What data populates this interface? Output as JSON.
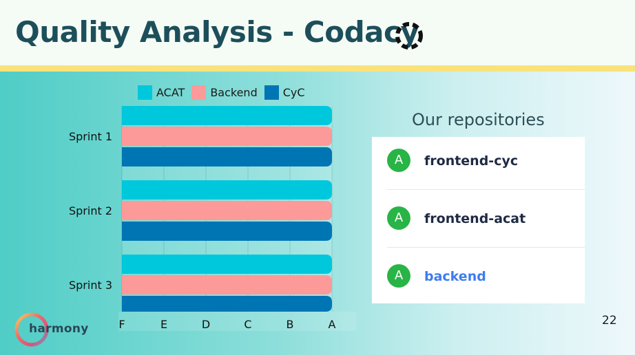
{
  "slide": {
    "title": "Quality Analysis - Codacy",
    "page_number": "22",
    "brand_name": "harmony",
    "colors": {
      "header_bg": "#f5fcf5",
      "header_line": "#fae27a",
      "title": "#1d4f5b"
    }
  },
  "chart_data": {
    "type": "bar",
    "orientation": "horizontal",
    "categories": [
      "Sprint 1",
      "Sprint 2",
      "Sprint 3"
    ],
    "x_ticks": [
      "F",
      "E",
      "D",
      "C",
      "B",
      "A"
    ],
    "series": [
      {
        "name": "ACAT",
        "color": "#00c8dc",
        "values": [
          "A",
          "A",
          "A"
        ]
      },
      {
        "name": "Backend",
        "color": "#fb9a99",
        "values": [
          "A",
          "A",
          "A"
        ]
      },
      {
        "name": "CyC",
        "color": "#0075b4",
        "values": [
          "A",
          "A",
          "A"
        ]
      }
    ],
    "legend_position": "top",
    "grid": true
  },
  "repositories": {
    "heading": "Our repositories",
    "items": [
      {
        "grade": "A",
        "name": "frontend-cyc",
        "grade_color": "#28b446"
      },
      {
        "grade": "A",
        "name": "frontend-acat",
        "grade_color": "#28b446"
      },
      {
        "grade": "A",
        "name": "backend",
        "grade_color": "#28b446"
      }
    ]
  }
}
